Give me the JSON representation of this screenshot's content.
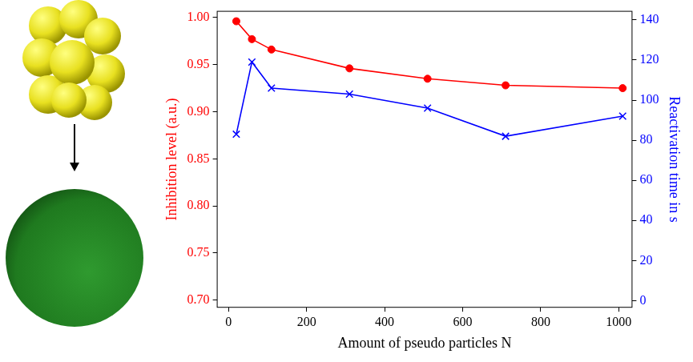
{
  "chart_data": {
    "type": "line",
    "x_label": "Amount of pseudo particles N",
    "y_label": "Inhibition level (a.u.)",
    "y2_label": "Reactivation time in s",
    "x": [
      20,
      60,
      110,
      310,
      510,
      710,
      1010
    ],
    "series": [
      {
        "name": "Inhibition level (a.u.)",
        "color": "#ff0000",
        "marker": "circle",
        "line_style": "solid",
        "axis": "y",
        "values": [
          0.996,
          0.977,
          0.966,
          0.946,
          0.935,
          0.928,
          0.925
        ]
      },
      {
        "name": "Reactivation time in s",
        "color": "#0000ff",
        "marker": "x",
        "line_style": "solid",
        "axis": "y2",
        "values": [
          83,
          119,
          106,
          103,
          96,
          82,
          92
        ]
      }
    ],
    "xlim": [
      -30,
      1035
    ],
    "xticks": [
      0,
      200,
      400,
      600,
      800,
      1000
    ],
    "ylim": [
      0.692,
      1.007
    ],
    "yticks": [
      {
        "value": 0.7,
        "label": "0.70"
      },
      0.75,
      {
        "value": 0.8,
        "label": "0.80"
      },
      0.85,
      {
        "value": 0.9,
        "label": "0.90"
      },
      0.95,
      {
        "value": 1.0,
        "label": "1.00"
      }
    ],
    "y2lim": [
      -3.5,
      144.5
    ],
    "y2ticks": [
      0,
      20,
      40,
      60,
      80,
      100,
      120,
      140
    ],
    "grid": false
  }
}
